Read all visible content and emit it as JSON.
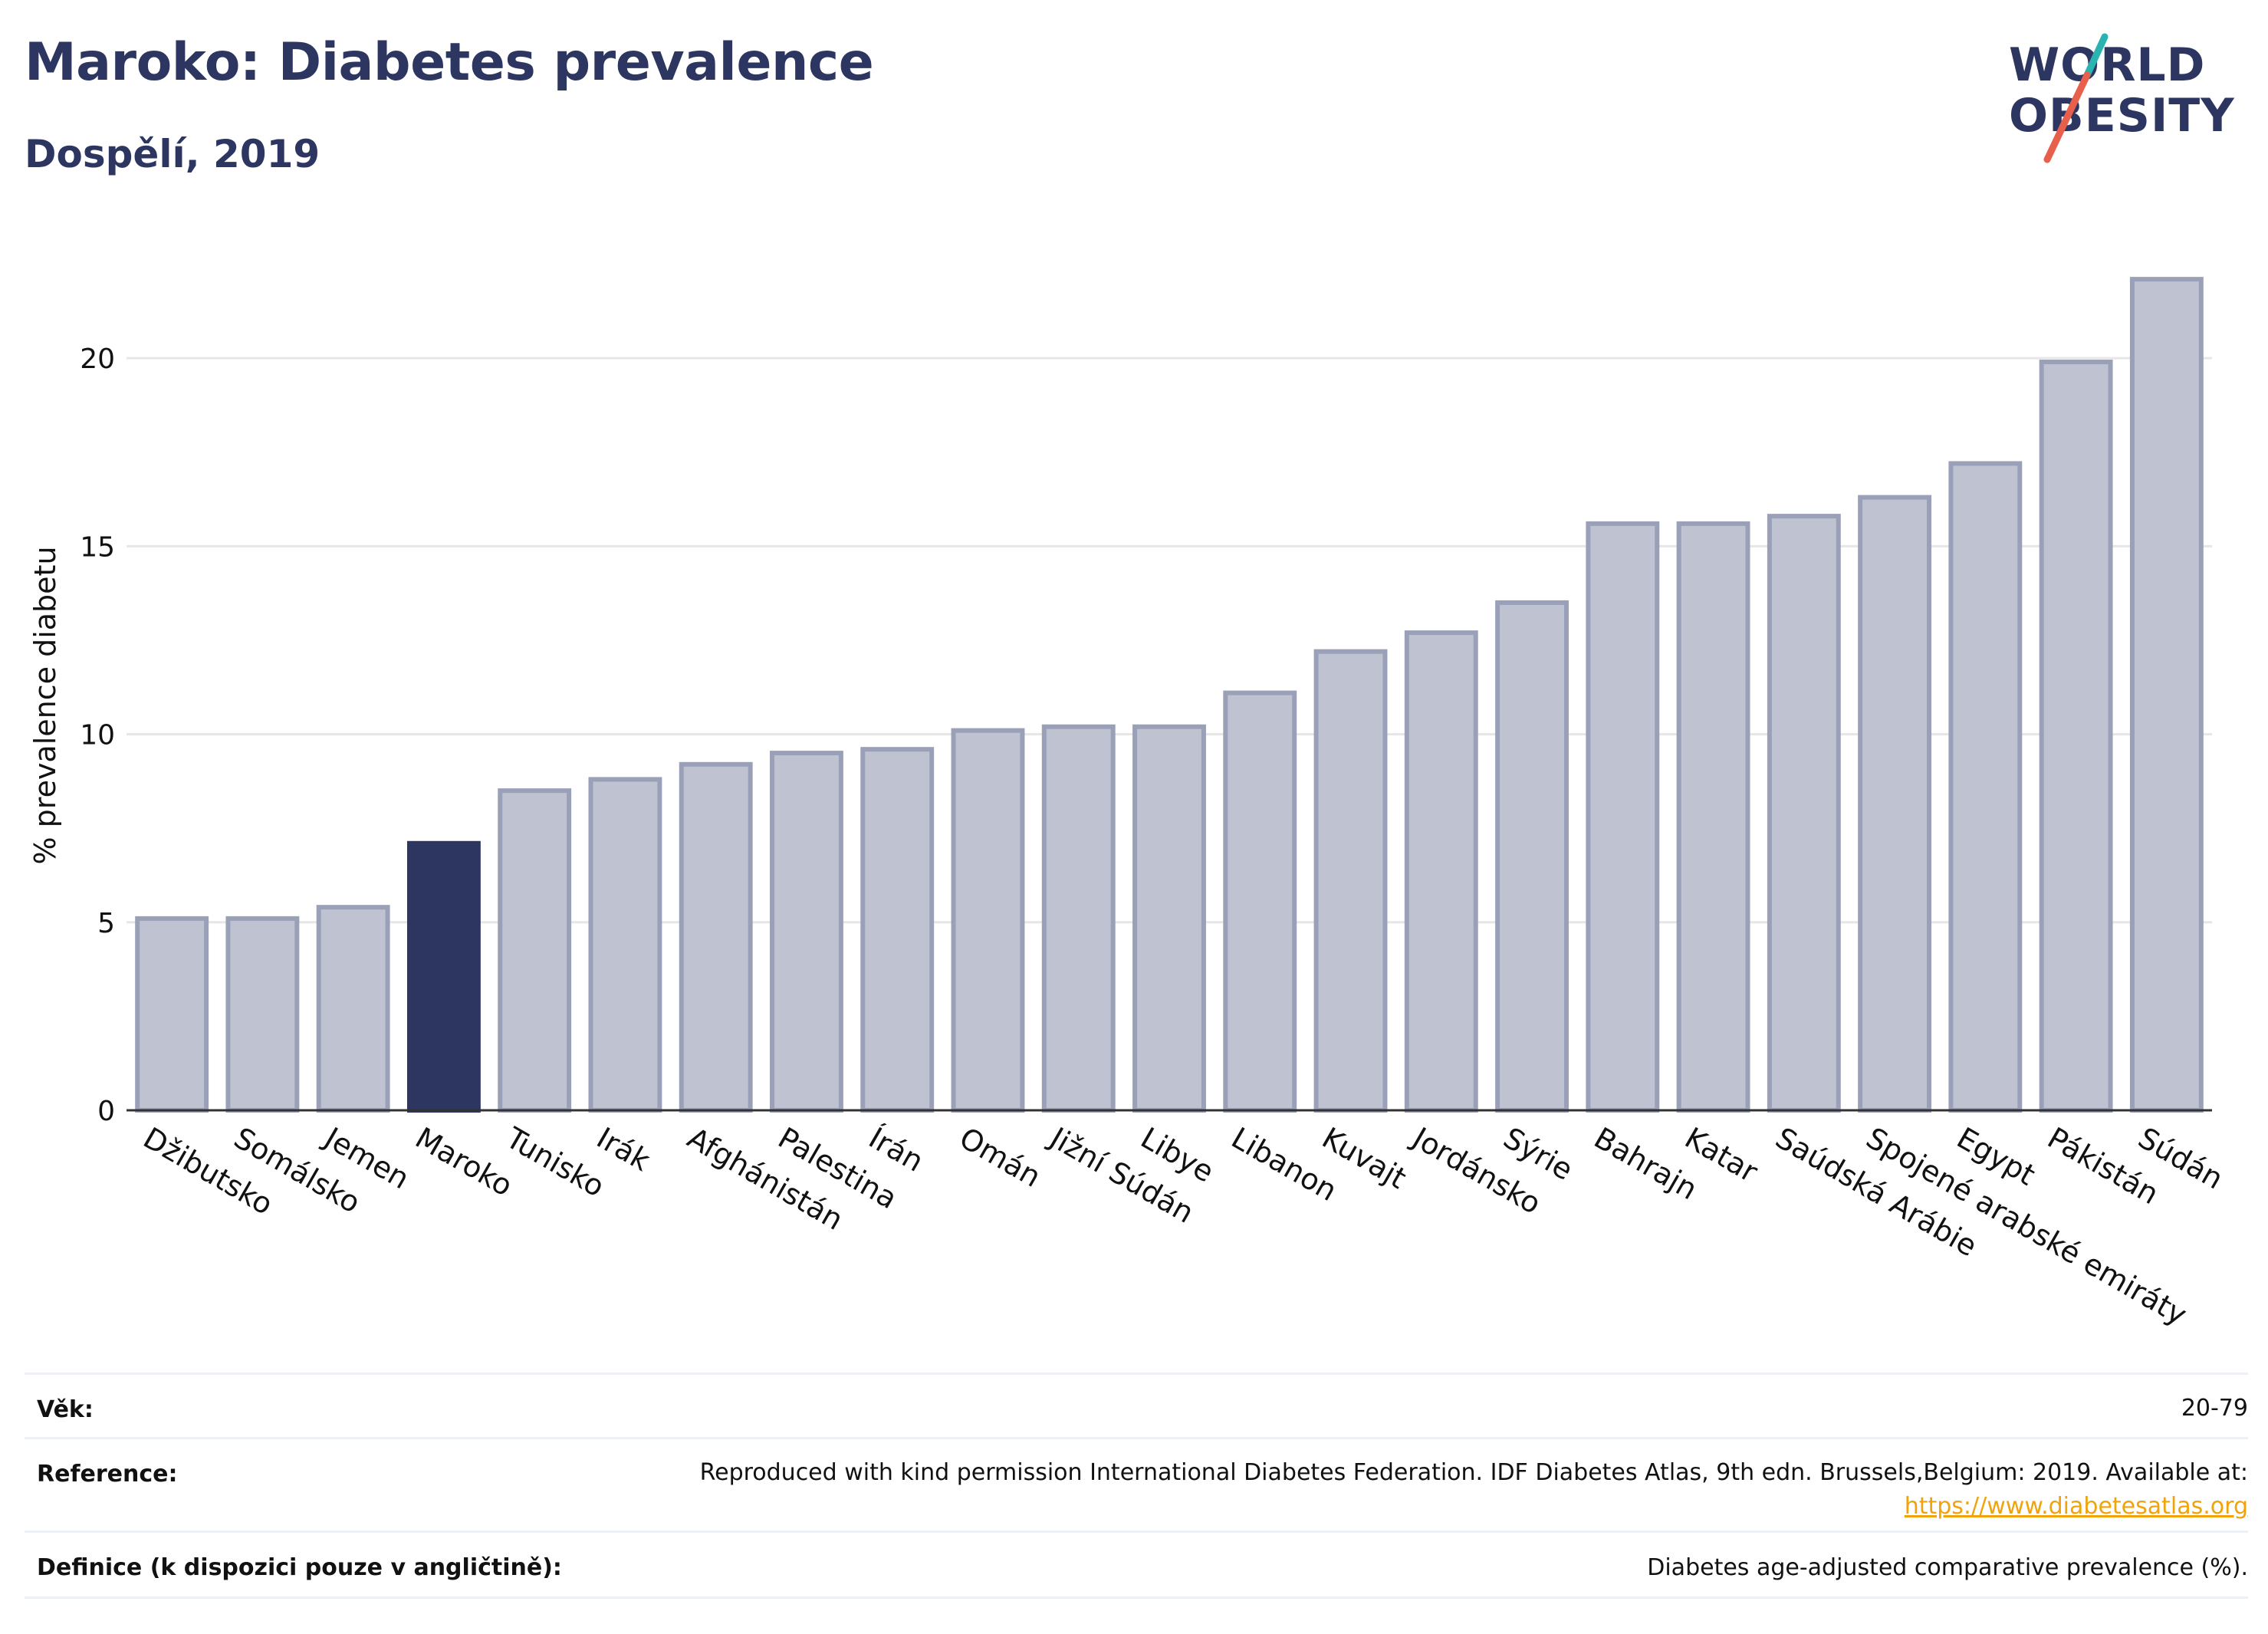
{
  "header": {
    "title": "Maroko: Diabetes prevalence",
    "subtitle": "Dospělí, 2019"
  },
  "logo": {
    "line1": "WORLD",
    "line2": "OBESITY"
  },
  "colors": {
    "highlight": "#2c3660",
    "bar_fill": "#bfc3d1",
    "bar_stroke": "#9aa0b8",
    "axis": "#333333",
    "grid": "#e6e6e6",
    "link": "#f0a30a",
    "logo_slash_teal": "#2bb3b1",
    "logo_slash_red": "#e8604c"
  },
  "chart_data": {
    "type": "bar",
    "ylabel": "% prevalence diabetu",
    "xlabel": "",
    "ylim": [
      0,
      23
    ],
    "yticks": [
      0,
      5,
      10,
      15,
      20
    ],
    "grid": true,
    "highlight_category": "Maroko",
    "categories": [
      "Džibutsko",
      "Somálsko",
      "Jemen",
      "Maroko",
      "Tunisko",
      "Irák",
      "Afghánistán",
      "Palestina",
      "Írán",
      "Omán",
      "Jižní Súdán",
      "Libye",
      "Libanon",
      "Kuvajt",
      "Jordánsko",
      "Sýrie",
      "Bahrajn",
      "Katar",
      "Saúdská Arábie",
      "Spojené arabské emiráty",
      "Egypt",
      "Pákistán",
      "Súdán"
    ],
    "values": [
      5.1,
      5.1,
      5.4,
      7.1,
      8.5,
      8.8,
      9.2,
      9.5,
      9.6,
      10.1,
      10.2,
      10.2,
      11.1,
      12.2,
      12.7,
      13.5,
      15.6,
      15.6,
      15.8,
      16.3,
      17.2,
      19.9,
      22.1
    ]
  },
  "footer": {
    "age_label": "Věk:",
    "age_value": "20-79",
    "reference_label": "Reference:",
    "reference_text": "Reproduced with kind permission International Diabetes Federation. IDF Diabetes Atlas, 9th edn. Brussels,Belgium: 2019. Available at:",
    "reference_link": "https://www.diabetesatlas.org",
    "definition_label": "Definice (k dispozici pouze v angličtině):",
    "definition_value": "Diabetes age-adjusted comparative prevalence (%)."
  }
}
